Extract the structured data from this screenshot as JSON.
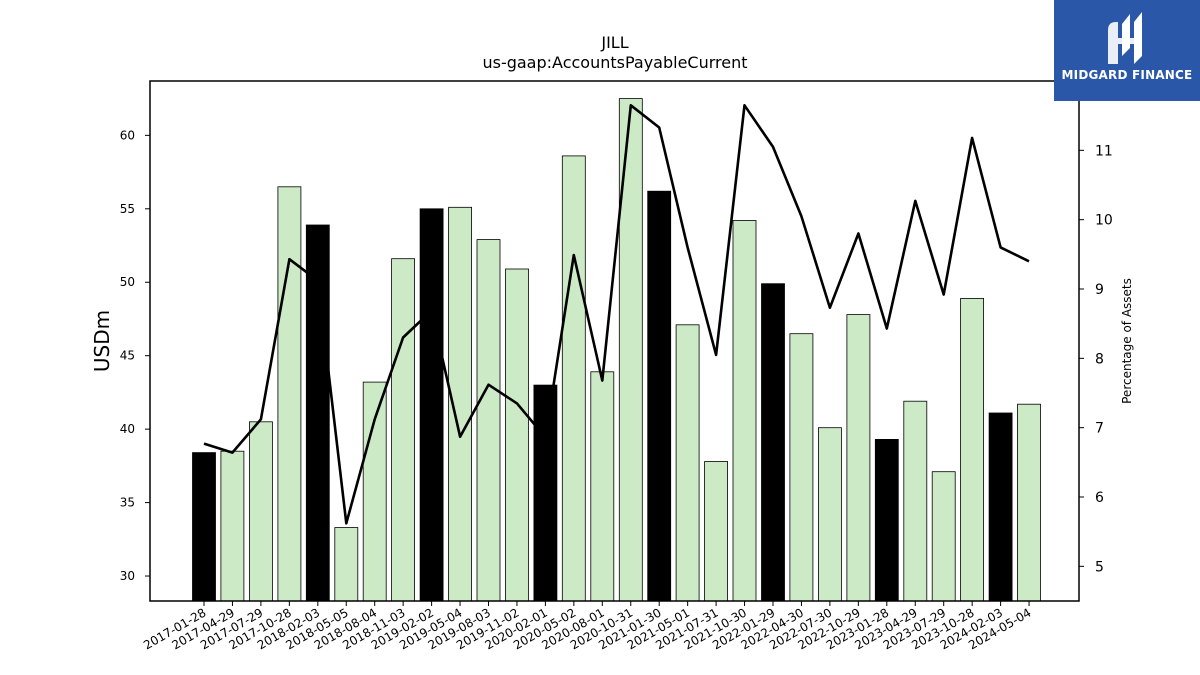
{
  "chart_data": {
    "type": "bar",
    "title": "JILL",
    "subtitle": "us-gaap:AccountsPayableCurrent",
    "ylabel": "USDm",
    "y2label": "Percentage of Assets",
    "ylim": [
      28.3,
      63.7
    ],
    "y2lim": [
      4.5,
      12.0
    ],
    "yticks": [
      30,
      35,
      40,
      45,
      50,
      55,
      60
    ],
    "y2ticks": [
      5,
      6,
      7,
      8,
      9,
      10,
      11
    ],
    "categories": [
      "2017-01-28",
      "2017-04-29",
      "2017-07-29",
      "2017-10-28",
      "2018-02-03",
      "2018-05-05",
      "2018-08-04",
      "2018-11-03",
      "2019-02-02",
      "2019-05-04",
      "2019-08-03",
      "2019-11-02",
      "2020-02-01",
      "2020-05-02",
      "2020-08-01",
      "2020-10-31",
      "2021-01-30",
      "2021-05-01",
      "2021-07-31",
      "2021-10-30",
      "2022-01-29",
      "2022-04-30",
      "2022-07-30",
      "2022-10-29",
      "2023-01-28",
      "2023-04-29",
      "2023-07-29",
      "2023-10-28",
      "2024-02-03",
      "2024-05-04"
    ],
    "series": [
      {
        "values": [
          38.4,
          38.5,
          40.5,
          56.5,
          53.9,
          33.3,
          43.2,
          51.6,
          55.0,
          55.1,
          52.9,
          50.9,
          43.0,
          58.6,
          43.9,
          62.5,
          56.2,
          47.1,
          37.8,
          54.2,
          49.9,
          46.5,
          40.1,
          47.8,
          39.3,
          41.9,
          37.1,
          48.9,
          41.1,
          41.7
        ],
        "highlight": [
          true,
          false,
          false,
          false,
          true,
          false,
          false,
          false,
          true,
          false,
          false,
          false,
          true,
          false,
          false,
          false,
          true,
          false,
          false,
          false,
          true,
          false,
          false,
          false,
          true,
          false,
          false,
          false,
          true,
          false
        ]
      },
      {
        "type": "line",
        "axis": "right",
        "values": [
          6.77,
          6.64,
          7.12,
          9.43,
          9.12,
          5.62,
          7.12,
          8.3,
          8.69,
          6.87,
          7.62,
          7.35,
          6.86,
          9.49,
          7.68,
          11.65,
          11.33,
          9.6,
          8.05,
          11.65,
          11.05,
          10.05,
          8.73,
          9.8,
          8.43,
          10.27,
          8.92,
          11.18,
          9.6,
          9.4
        ]
      }
    ],
    "colors": {
      "bar_default": "#cdeac7",
      "bar_highlight": "#000000",
      "line": "#000000",
      "edge": "#000000"
    },
    "grid": false
  },
  "logo": {
    "text": "MIDGARD FINANCE",
    "bg": "#2b57a9"
  }
}
